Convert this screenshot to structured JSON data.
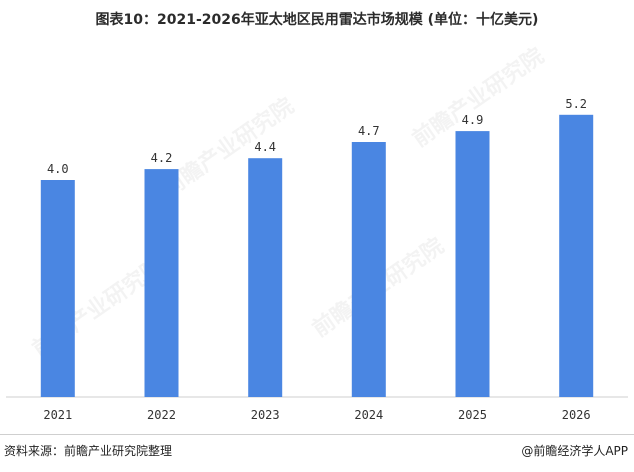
{
  "title": "图表10：2021-2026年亚太地区民用雷达市场规模 (单位：十亿美元)",
  "source": "资料来源：前瞻产业研究院整理",
  "brand": "@前瞻经济学人APP",
  "watermark": "前瞻产业研究院",
  "colors": {
    "bar": "#4a86e2",
    "axis": "#cfcfcf"
  },
  "chart_data": {
    "type": "bar",
    "title": "图表10：2021-2026年亚太地区民用雷达市场规模 (单位：十亿美元)",
    "categories": [
      "2021",
      "2022",
      "2023",
      "2024",
      "2025",
      "2026"
    ],
    "values": [
      4.0,
      4.2,
      4.4,
      4.7,
      4.9,
      5.2
    ],
    "value_labels": [
      "4.0",
      "4.2",
      "4.4",
      "4.7",
      "4.9",
      "5.2"
    ],
    "xlabel": "",
    "ylabel": "",
    "ylim": [
      0,
      6.1
    ],
    "grid": false,
    "legend": "none"
  }
}
